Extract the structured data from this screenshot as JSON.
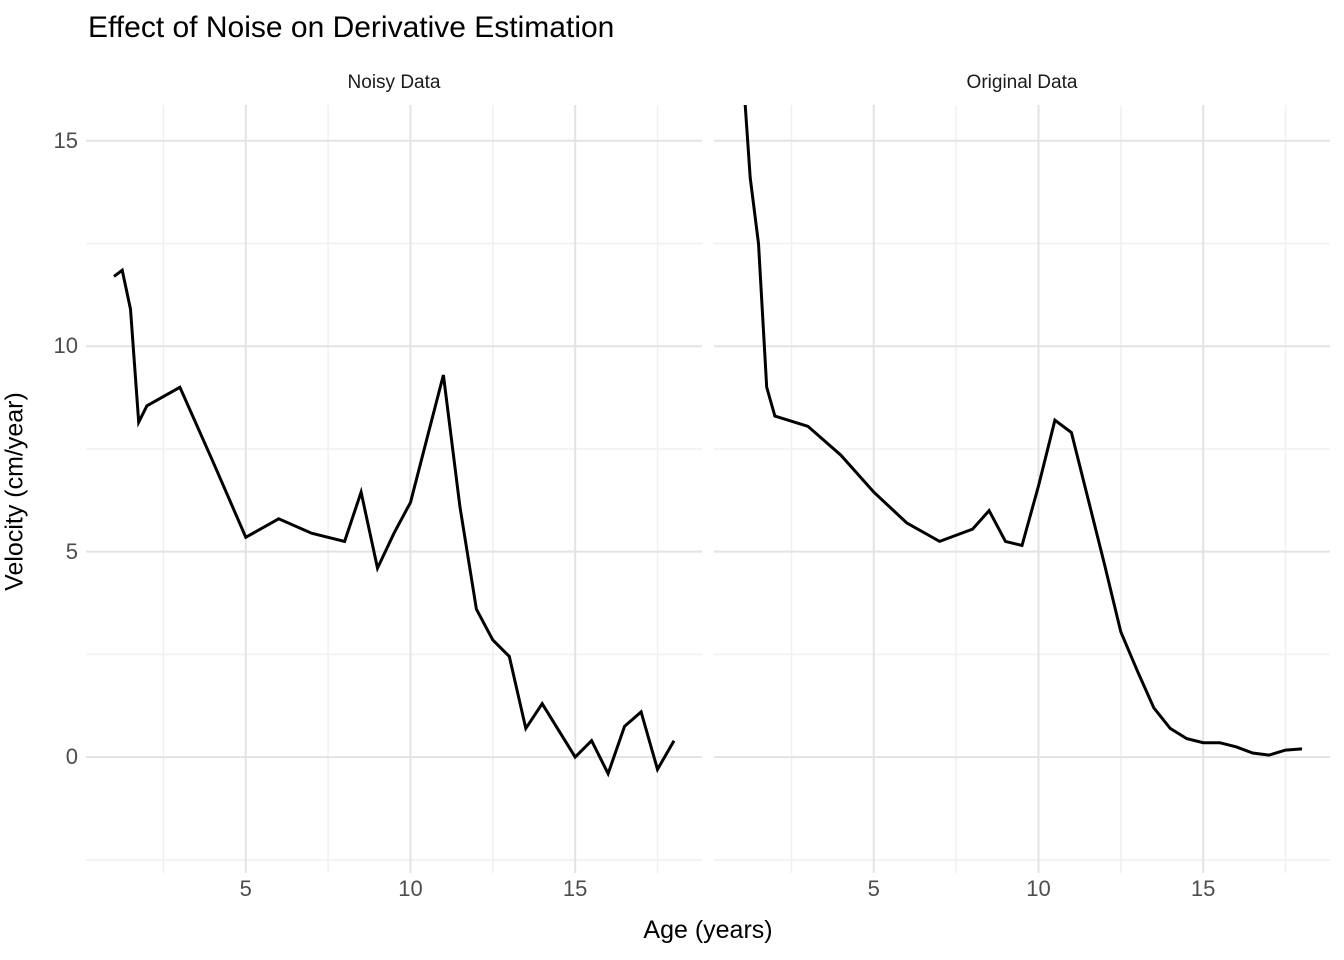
{
  "title": "Effect of Noise on Derivative Estimation",
  "axes": {
    "x_label": "Age (years)",
    "y_label": "Velocity (cm/year)"
  },
  "chart_data": {
    "type": "line",
    "xlabel": "Age (years)",
    "ylabel": "Velocity (cm/year)",
    "title": "Effect of Noise on Derivative Estimation",
    "x_ticks": [
      5,
      10,
      15
    ],
    "y_ticks": [
      0,
      5,
      10,
      15
    ],
    "x_minor_ticks": [
      2.5,
      7.5,
      12.5,
      17.5
    ],
    "y_minor_ticks": [
      -2.5,
      2.5,
      7.5,
      12.5
    ],
    "xlim": [
      0.15,
      18.85
    ],
    "ylim": [
      -2.82,
      15.87
    ],
    "grid": true,
    "legend": false,
    "line_color": "#000000",
    "grid_major_color": "#e3e3e3",
    "grid_minor_color": "#f0f0f0",
    "tick_label_color": "#4d4d4d",
    "facets": [
      {
        "label": "Noisy Data",
        "points": [
          [
            1,
            11.7
          ],
          [
            1.25,
            11.85
          ],
          [
            1.5,
            10.9
          ],
          [
            1.75,
            8.15
          ],
          [
            2,
            8.55
          ],
          [
            3,
            9.0
          ],
          [
            4,
            7.2
          ],
          [
            5,
            5.35
          ],
          [
            6,
            5.8
          ],
          [
            7,
            5.45
          ],
          [
            8,
            5.25
          ],
          [
            8.5,
            6.45
          ],
          [
            9,
            4.6
          ],
          [
            9.5,
            5.45
          ],
          [
            10,
            6.2
          ],
          [
            10.5,
            7.75
          ],
          [
            11,
            9.3
          ],
          [
            11.5,
            6.1
          ],
          [
            12,
            3.6
          ],
          [
            12.5,
            2.85
          ],
          [
            13,
            2.45
          ],
          [
            13.5,
            0.7
          ],
          [
            14,
            1.3
          ],
          [
            14.5,
            0.65
          ],
          [
            15,
            0.0
          ],
          [
            15.5,
            0.4
          ],
          [
            16,
            -0.4
          ],
          [
            16.5,
            0.75
          ],
          [
            17,
            1.1
          ],
          [
            17.5,
            -0.3
          ],
          [
            18,
            0.4
          ]
        ]
      },
      {
        "label": "Original Data",
        "points": [
          [
            1,
            17.0
          ],
          [
            1.25,
            14.1
          ],
          [
            1.5,
            12.5
          ],
          [
            1.75,
            9.0
          ],
          [
            2,
            8.3
          ],
          [
            3,
            8.05
          ],
          [
            4,
            7.35
          ],
          [
            5,
            6.45
          ],
          [
            6,
            5.7
          ],
          [
            7,
            5.25
          ],
          [
            8,
            5.55
          ],
          [
            8.5,
            6.0
          ],
          [
            9,
            5.25
          ],
          [
            9.5,
            5.15
          ],
          [
            10,
            6.6
          ],
          [
            10.5,
            8.2
          ],
          [
            11,
            7.9
          ],
          [
            11.5,
            6.3
          ],
          [
            12,
            4.7
          ],
          [
            12.5,
            3.05
          ],
          [
            13,
            2.1
          ],
          [
            13.5,
            1.2
          ],
          [
            14,
            0.7
          ],
          [
            14.5,
            0.45
          ],
          [
            15,
            0.35
          ],
          [
            15.5,
            0.35
          ],
          [
            16,
            0.25
          ],
          [
            16.5,
            0.1
          ],
          [
            17,
            0.05
          ],
          [
            17.5,
            0.17
          ],
          [
            18,
            0.2
          ]
        ]
      }
    ]
  }
}
